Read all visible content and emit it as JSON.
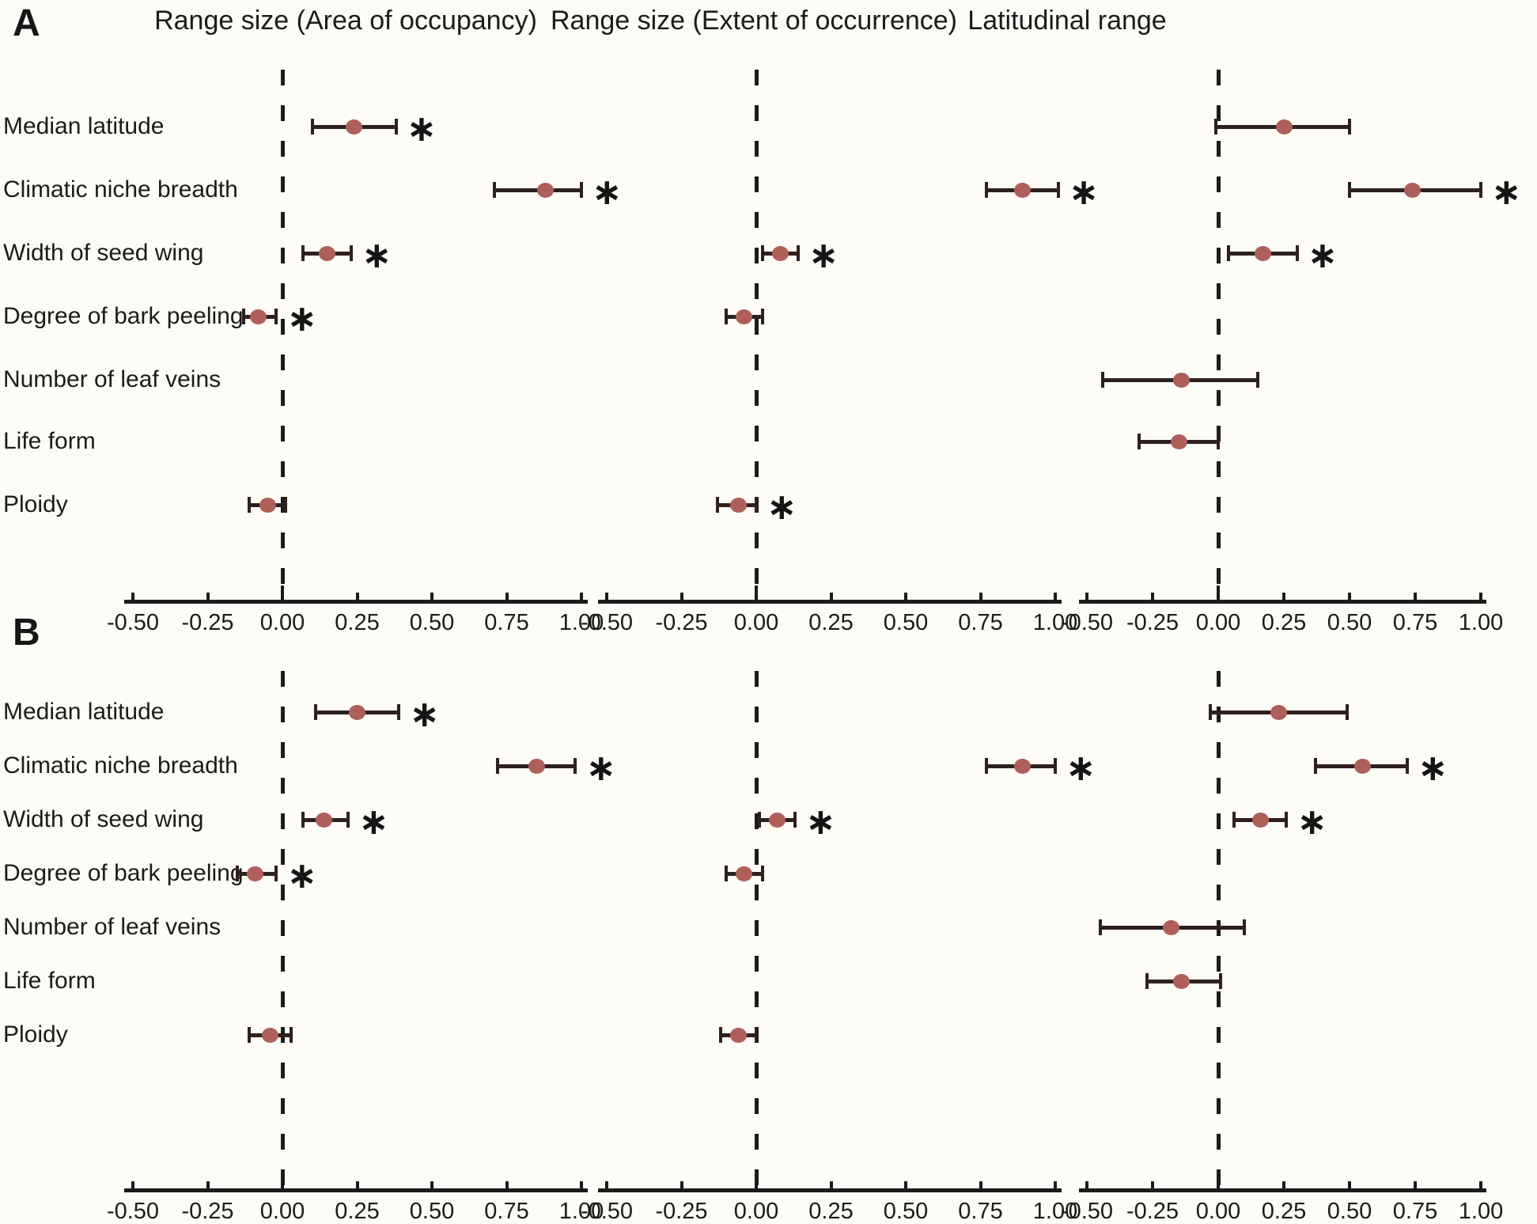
{
  "figure": {
    "panel_a_label": "A",
    "panel_b_label": "B",
    "column_titles": [
      "Range size (Area of occupancy)",
      "Range size (Extent of occurrence)",
      "Latitudinal range"
    ],
    "axis_ticks": [
      "-0.50",
      "-0.25",
      "0.00",
      "0.25",
      "0.50",
      "0.75",
      "1.00"
    ],
    "significance_marker": "∗",
    "colors": {
      "point": "#af5f5a",
      "error_bar": "#2e211d",
      "axis": "#1b1b1b",
      "background": "#fdfcf6"
    }
  },
  "chart_data": {
    "type": "scatter",
    "subtype": "forest-plot",
    "xlim": [
      -0.55,
      1.05
    ],
    "x_ticks": [
      -0.5,
      -0.25,
      0,
      0.25,
      0.5,
      0.75,
      1.0
    ],
    "zero_reference_line": 0,
    "grid": false,
    "legend": null,
    "predictors": [
      "Median latitude",
      "Climatic niche breadth",
      "Width of seed wing",
      "Degree of bark peeling",
      "Number of leaf veins",
      "Life form",
      "Ploidy"
    ],
    "panels": [
      {
        "panel": "A",
        "columns": [
          {
            "title": "Range size (Area of occupancy)",
            "values": [
              0.24,
              0.88,
              0.15,
              -0.08,
              null,
              null,
              -0.05
            ],
            "ci_low": [
              0.1,
              0.71,
              0.07,
              -0.13,
              null,
              null,
              -0.11
            ],
            "ci_high": [
              0.38,
              1.0,
              0.23,
              -0.02,
              null,
              null,
              0.01
            ],
            "significant": [
              true,
              true,
              true,
              true,
              false,
              false,
              false
            ]
          },
          {
            "title": "Range size (Extent of occurrence)",
            "values": [
              null,
              0.89,
              0.08,
              -0.04,
              null,
              null,
              -0.06
            ],
            "ci_low": [
              null,
              0.77,
              0.02,
              -0.1,
              null,
              null,
              -0.13
            ],
            "ci_high": [
              null,
              1.01,
              0.14,
              0.02,
              null,
              null,
              0.0
            ],
            "significant": [
              false,
              true,
              true,
              false,
              false,
              false,
              true
            ]
          },
          {
            "title": "Latitudinal range",
            "values": [
              0.25,
              0.74,
              0.17,
              null,
              -0.14,
              -0.15,
              null
            ],
            "ci_low": [
              -0.01,
              0.5,
              0.04,
              null,
              -0.44,
              -0.3,
              null
            ],
            "ci_high": [
              0.5,
              1.0,
              0.3,
              null,
              0.15,
              0.0,
              null
            ],
            "significant": [
              false,
              true,
              true,
              false,
              false,
              false,
              false
            ]
          }
        ]
      },
      {
        "panel": "B",
        "columns": [
          {
            "title": "Range size (Area of occupancy)",
            "values": [
              0.25,
              0.85,
              0.14,
              -0.09,
              null,
              null,
              -0.04
            ],
            "ci_low": [
              0.11,
              0.72,
              0.07,
              -0.15,
              null,
              null,
              -0.11
            ],
            "ci_high": [
              0.39,
              0.98,
              0.22,
              -0.02,
              null,
              null,
              0.03
            ],
            "significant": [
              true,
              true,
              true,
              true,
              false,
              false,
              false
            ]
          },
          {
            "title": "Range size (Extent of occurrence)",
            "values": [
              null,
              0.89,
              0.07,
              -0.04,
              null,
              null,
              -0.06
            ],
            "ci_low": [
              null,
              0.77,
              0.01,
              -0.1,
              null,
              null,
              -0.12
            ],
            "ci_high": [
              null,
              1.0,
              0.13,
              0.02,
              null,
              null,
              0.0
            ],
            "significant": [
              false,
              true,
              true,
              false,
              false,
              false,
              false
            ]
          },
          {
            "title": "Latitudinal range",
            "values": [
              0.23,
              0.55,
              0.16,
              null,
              -0.18,
              -0.14,
              null
            ],
            "ci_low": [
              -0.03,
              0.37,
              0.06,
              null,
              -0.45,
              -0.27,
              null
            ],
            "ci_high": [
              0.49,
              0.72,
              0.26,
              null,
              0.1,
              0.01,
              null
            ],
            "significant": [
              false,
              true,
              true,
              false,
              false,
              false,
              false
            ]
          }
        ]
      }
    ]
  }
}
